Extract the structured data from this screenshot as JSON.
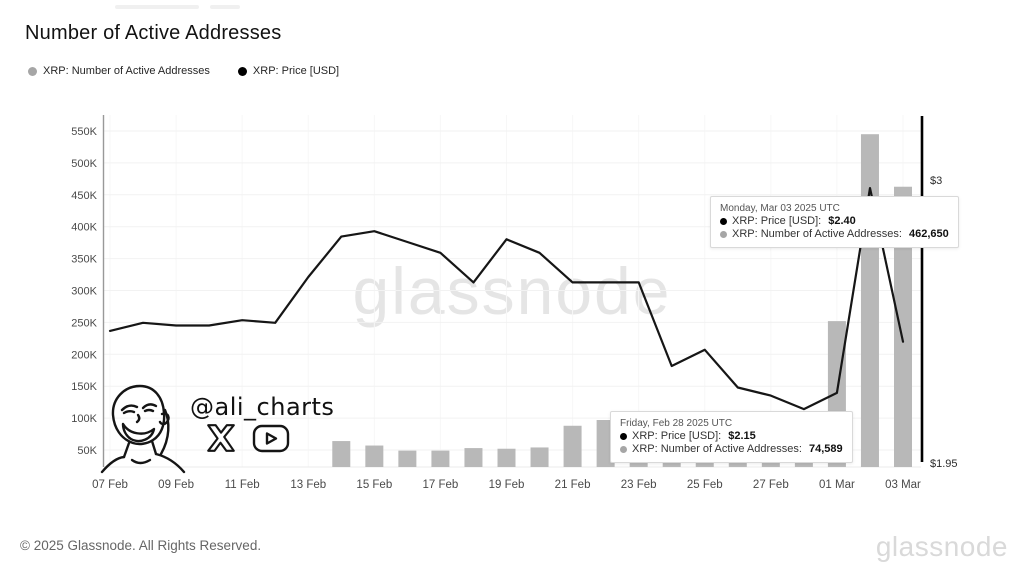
{
  "header": {
    "title": "Number of Active Addresses"
  },
  "legend": {
    "items": [
      {
        "label": "XRP: Number of Active Addresses",
        "color": "#a6a6a6"
      },
      {
        "label": "XRP: Price [USD]",
        "color": "#000000"
      }
    ]
  },
  "watermark": "glassnode",
  "signature": {
    "handle": "@ali_charts",
    "icons": [
      "x-logo-icon",
      "youtube-icon"
    ]
  },
  "tooltips": [
    {
      "title": "Monday, Mar 03 2025 UTC",
      "rows": [
        {
          "dot_color": "#000000",
          "label": "XRP: Price [USD]:",
          "value": "$2.40"
        },
        {
          "dot_color": "#b3b3b3",
          "label": "XRP: Number of Active Addresses:",
          "value": "462,650"
        }
      ]
    },
    {
      "title": "Friday, Feb 28 2025 UTC",
      "rows": [
        {
          "dot_color": "#000000",
          "label": "XRP: Price [USD]:",
          "value": "$2.15"
        },
        {
          "dot_color": "#b3b3b3",
          "label": "XRP: Number of Active Addresses:",
          "value": "74,589"
        }
      ]
    }
  ],
  "footer": {
    "copyright": "© 2025 Glassnode. All Rights Reserved.",
    "brand": "glassnode"
  },
  "chart_data": {
    "type": "bar+line",
    "x": [
      "07 Feb",
      "08 Feb",
      "09 Feb",
      "10 Feb",
      "11 Feb",
      "12 Feb",
      "13 Feb",
      "14 Feb",
      "15 Feb",
      "16 Feb",
      "17 Feb",
      "18 Feb",
      "19 Feb",
      "20 Feb",
      "21 Feb",
      "22 Feb",
      "23 Feb",
      "24 Feb",
      "25 Feb",
      "26 Feb",
      "27 Feb",
      "28 Feb",
      "01 Mar",
      "02 Mar",
      "03 Mar"
    ],
    "x_tick_labels": [
      "07 Feb",
      "09 Feb",
      "11 Feb",
      "13 Feb",
      "15 Feb",
      "17 Feb",
      "19 Feb",
      "21 Feb",
      "23 Feb",
      "25 Feb",
      "27 Feb",
      "01 Mar",
      "03 Mar"
    ],
    "left_axis": {
      "title": "Number of Active Addresses",
      "tick_labels": [
        "50K",
        "100K",
        "150K",
        "200K",
        "250K",
        "300K",
        "350K",
        "400K",
        "450K",
        "500K",
        "550K"
      ],
      "tick_values": [
        50000,
        100000,
        150000,
        200000,
        250000,
        300000,
        350000,
        400000,
        450000,
        500000,
        550000
      ]
    },
    "right_axis": {
      "title": "Price [USD]",
      "ticks": [
        {
          "label": "$3",
          "value": 3
        },
        {
          "label": "$1.95",
          "value": 1.95
        }
      ]
    },
    "grid": true,
    "legend_position": "top-left",
    "series": [
      {
        "name": "XRP: Number of Active Addresses",
        "type": "bar",
        "axis": "left",
        "color": "#b8b8b8",
        "values": [
          null,
          null,
          null,
          null,
          null,
          null,
          null,
          64000,
          57000,
          49000,
          49000,
          53000,
          52000,
          54000,
          88000,
          97000,
          62000,
          65000,
          68000,
          70000,
          72000,
          74589,
          252000,
          545000,
          462650
        ]
      },
      {
        "name": "XRP: Price [USD]",
        "type": "line",
        "axis": "right",
        "color": "#161616",
        "values": [
          2.44,
          2.47,
          2.46,
          2.46,
          2.48,
          2.47,
          2.64,
          2.79,
          2.81,
          2.77,
          2.73,
          2.62,
          2.78,
          2.73,
          2.62,
          2.62,
          2.62,
          2.31,
          2.37,
          2.23,
          2.2,
          2.15,
          2.21,
          2.97,
          2.4
        ]
      }
    ]
  }
}
